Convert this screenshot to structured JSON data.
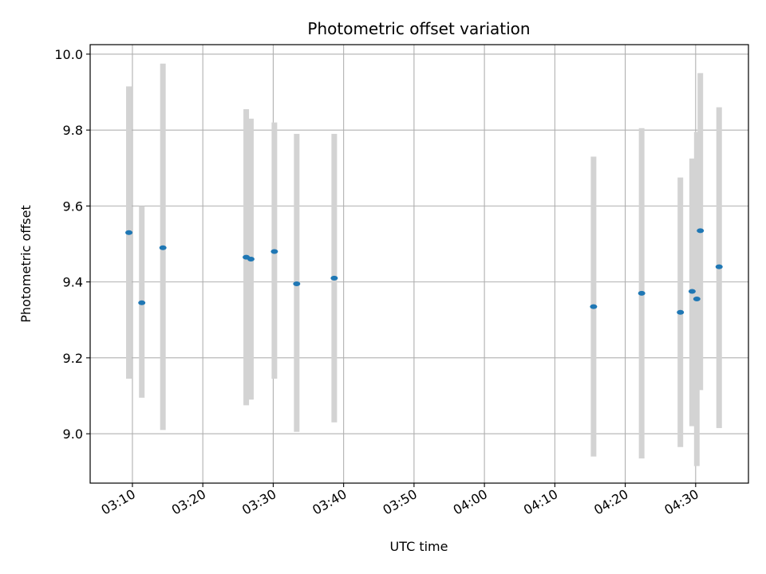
{
  "chart_data": {
    "type": "scatter",
    "title": "Photometric offset variation",
    "xlabel": "UTC time",
    "ylabel": "Photometric offset",
    "xlim": [
      "03:04:00",
      "04:37:30"
    ],
    "ylim": [
      8.87,
      10.025
    ],
    "grid": true,
    "x_ticks": [
      "03:10",
      "03:20",
      "03:30",
      "03:40",
      "03:50",
      "04:00",
      "04:10",
      "04:20",
      "04:30"
    ],
    "y_ticks": [
      "9.0",
      "9.2",
      "9.4",
      "9.6",
      "9.8",
      "10.0"
    ],
    "colors": {
      "point": "#1f77b4",
      "errorbar": "#d3d3d3",
      "grid": "#b0b0b0"
    },
    "series": [
      {
        "points": [
          {
            "x": "03:09:30",
            "y": 9.53,
            "ylow": 9.145,
            "yhigh": 9.915
          },
          {
            "x": "03:11:20",
            "y": 9.345,
            "ylow": 9.095,
            "yhigh": 9.6
          },
          {
            "x": "03:14:20",
            "y": 9.49,
            "ylow": 9.01,
            "yhigh": 9.975
          },
          {
            "x": "03:26:10",
            "y": 9.465,
            "ylow": 9.075,
            "yhigh": 9.855
          },
          {
            "x": "03:26:50",
            "y": 9.46,
            "ylow": 9.09,
            "yhigh": 9.83
          },
          {
            "x": "03:30:10",
            "y": 9.48,
            "ylow": 9.145,
            "yhigh": 9.82
          },
          {
            "x": "03:33:20",
            "y": 9.395,
            "ylow": 9.005,
            "yhigh": 9.79
          },
          {
            "x": "03:38:40",
            "y": 9.41,
            "ylow": 9.03,
            "yhigh": 9.79
          },
          {
            "x": "04:15:30",
            "y": 9.335,
            "ylow": 8.94,
            "yhigh": 9.73
          },
          {
            "x": "04:22:20",
            "y": 9.37,
            "ylow": 8.935,
            "yhigh": 9.805
          },
          {
            "x": "04:27:50",
            "y": 9.32,
            "ylow": 8.965,
            "yhigh": 9.675
          },
          {
            "x": "04:29:30",
            "y": 9.375,
            "ylow": 9.02,
            "yhigh": 9.725
          },
          {
            "x": "04:30:10",
            "y": 9.355,
            "ylow": 8.915,
            "yhigh": 9.795
          },
          {
            "x": "04:30:40",
            "y": 9.535,
            "ylow": 9.115,
            "yhigh": 9.95
          },
          {
            "x": "04:33:20",
            "y": 9.44,
            "ylow": 9.015,
            "yhigh": 9.86
          }
        ]
      }
    ]
  }
}
